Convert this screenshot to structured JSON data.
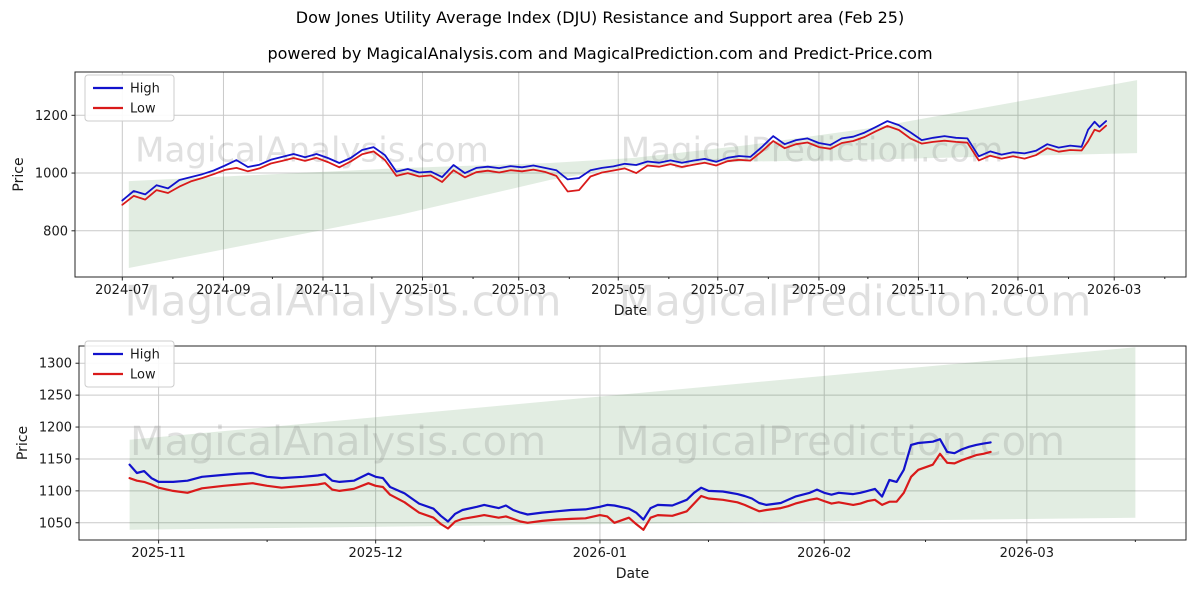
{
  "title": "Dow Jones Utility Average Index (DJU) Resistance and Support area (Feb 25)",
  "subtitle": "powered by MagicalAnalysis.com and MagicalPrediction.com and Predict-Price.com",
  "watermarks": [
    "MagicalAnalysis.com",
    "MagicalPrediction.com"
  ],
  "colors": {
    "high": "#1212cc",
    "low": "#d91a1a",
    "band": "rgba(34,119,34,0.13)",
    "grid": "#c9c9c9",
    "spine": "#262626",
    "text": "#1a1a1a",
    "watermark": "#8a8a8a"
  },
  "chart_data": [
    {
      "type": "line",
      "name": "overview",
      "xlabel": "Date",
      "ylabel": "Price",
      "grid": true,
      "legend_position": "upper left",
      "legend": [
        "High",
        "Low"
      ],
      "xlim": [
        "2024-06-02",
        "2026-04-14"
      ],
      "ylim": [
        640,
        1350
      ],
      "yticks": [
        800,
        1000,
        1200
      ],
      "xticks": [
        {
          "label": "2024-07",
          "date": "2024-07-01"
        },
        {
          "label": "2024-09",
          "date": "2024-09-01"
        },
        {
          "label": "2024-11",
          "date": "2024-11-01"
        },
        {
          "label": "2025-01",
          "date": "2025-01-01"
        },
        {
          "label": "2025-03",
          "date": "2025-03-01"
        },
        {
          "label": "2025-05",
          "date": "2025-05-01"
        },
        {
          "label": "2025-07",
          "date": "2025-07-01"
        },
        {
          "label": "2025-09",
          "date": "2025-09-01"
        },
        {
          "label": "2025-11",
          "date": "2025-11-01"
        },
        {
          "label": "2026-01",
          "date": "2026-01-01"
        },
        {
          "label": "2026-03",
          "date": "2026-03-01"
        }
      ],
      "minor_xticks": [
        "2024-08-01",
        "2024-10-01",
        "2024-12-01",
        "2025-02-01",
        "2025-04-01",
        "2025-06-01",
        "2025-08-01",
        "2025-10-01",
        "2025-12-01",
        "2026-02-01",
        "2026-04-01"
      ],
      "dates": [
        "2024-07-01",
        "2024-07-08",
        "2024-07-15",
        "2024-07-22",
        "2024-07-29",
        "2024-08-05",
        "2024-08-12",
        "2024-08-19",
        "2024-08-26",
        "2024-09-02",
        "2024-09-09",
        "2024-09-16",
        "2024-09-23",
        "2024-09-30",
        "2024-10-07",
        "2024-10-14",
        "2024-10-21",
        "2024-10-28",
        "2024-11-04",
        "2024-11-11",
        "2024-11-18",
        "2024-11-25",
        "2024-12-02",
        "2024-12-09",
        "2024-12-16",
        "2024-12-23",
        "2024-12-30",
        "2025-01-06",
        "2025-01-13",
        "2025-01-20",
        "2025-01-27",
        "2025-02-03",
        "2025-02-10",
        "2025-02-17",
        "2025-02-24",
        "2025-03-03",
        "2025-03-10",
        "2025-03-17",
        "2025-03-24",
        "2025-03-31",
        "2025-04-07",
        "2025-04-14",
        "2025-04-21",
        "2025-04-28",
        "2025-05-05",
        "2025-05-12",
        "2025-05-19",
        "2025-05-26",
        "2025-06-02",
        "2025-06-09",
        "2025-06-16",
        "2025-06-23",
        "2025-06-30",
        "2025-07-07",
        "2025-07-14",
        "2025-07-21",
        "2025-07-28",
        "2025-08-04",
        "2025-08-11",
        "2025-08-18",
        "2025-08-25",
        "2025-09-01",
        "2025-09-08",
        "2025-09-15",
        "2025-09-22",
        "2025-09-29",
        "2025-10-06",
        "2025-10-13",
        "2025-10-20",
        "2025-10-27",
        "2025-11-03",
        "2025-11-10",
        "2025-11-17",
        "2025-11-24",
        "2025-12-01",
        "2025-12-08",
        "2025-12-15",
        "2025-12-22",
        "2025-12-29",
        "2026-01-05",
        "2026-01-12",
        "2026-01-19",
        "2026-01-26",
        "2026-02-02",
        "2026-02-09",
        "2026-02-13",
        "2026-02-17",
        "2026-02-20",
        "2026-02-24"
      ],
      "series": [
        {
          "name": "High",
          "values": [
            905,
            938,
            926,
            958,
            947,
            976,
            986,
            996,
            1009,
            1026,
            1045,
            1021,
            1029,
            1046,
            1056,
            1066,
            1055,
            1066,
            1052,
            1035,
            1052,
            1080,
            1090,
            1062,
            1005,
            1014,
            1002,
            1005,
            986,
            1028,
            1000,
            1018,
            1022,
            1017,
            1024,
            1020,
            1026,
            1018,
            1010,
            978,
            983,
            1010,
            1018,
            1023,
            1032,
            1028,
            1040,
            1036,
            1044,
            1036,
            1043,
            1049,
            1039,
            1053,
            1059,
            1056,
            1090,
            1128,
            1100,
            1114,
            1120,
            1104,
            1097,
            1120,
            1126,
            1140,
            1160,
            1180,
            1166,
            1141,
            1114,
            1122,
            1128,
            1122,
            1120,
            1058,
            1075,
            1064,
            1072,
            1068,
            1077,
            1100,
            1088,
            1095,
            1091,
            1150,
            1178,
            1160,
            1180
          ]
        },
        {
          "name": "Low",
          "values": [
            890,
            921,
            908,
            941,
            931,
            953,
            971,
            983,
            996,
            1011,
            1018,
            1006,
            1016,
            1033,
            1042,
            1052,
            1042,
            1053,
            1038,
            1020,
            1040,
            1065,
            1075,
            1045,
            990,
            1000,
            988,
            992,
            969,
            1010,
            985,
            1003,
            1008,
            1002,
            1010,
            1006,
            1012,
            1004,
            990,
            936,
            941,
            988,
            1002,
            1009,
            1016,
            1000,
            1026,
            1022,
            1031,
            1021,
            1029,
            1036,
            1026,
            1041,
            1046,
            1043,
            1075,
            1111,
            1086,
            1100,
            1106,
            1090,
            1084,
            1104,
            1111,
            1125,
            1145,
            1163,
            1149,
            1120,
            1102,
            1108,
            1112,
            1108,
            1105,
            1044,
            1060,
            1050,
            1058,
            1050,
            1062,
            1086,
            1074,
            1080,
            1078,
            1110,
            1150,
            1144,
            1164
          ]
        }
      ],
      "band_polygon": [
        [
          "2024-07-05",
          972
        ],
        [
          "2024-12-18",
          1017
        ],
        [
          "2025-03-20",
          1035
        ],
        [
          "2025-05-10",
          1052
        ],
        [
          "2025-07-20",
          1097
        ],
        [
          "2025-10-03",
          1156
        ],
        [
          "2026-03-15",
          1322
        ],
        [
          "2026-03-15",
          1069
        ],
        [
          "2025-09-20",
          1045
        ],
        [
          "2025-07-20",
          1040
        ],
        [
          "2025-05-10",
          1024
        ],
        [
          "2025-03-20",
          976
        ],
        [
          "2024-12-18",
          855
        ],
        [
          "2024-07-05",
          671
        ]
      ]
    },
    {
      "type": "line",
      "name": "detail",
      "xlabel": "Date",
      "ylabel": "Price",
      "grid": true,
      "legend_position": "upper left",
      "legend": [
        "High",
        "Low"
      ],
      "xlim": [
        "2025-10-21",
        "2026-03-23"
      ],
      "ylim": [
        1023,
        1327
      ],
      "yticks": [
        1050,
        1100,
        1150,
        1200,
        1250,
        1300
      ],
      "xticks": [
        {
          "label": "2025-11",
          "date": "2025-11-01"
        },
        {
          "label": "2025-12",
          "date": "2025-12-01"
        },
        {
          "label": "2026-01",
          "date": "2026-01-01"
        },
        {
          "label": "2026-02",
          "date": "2026-02-01"
        },
        {
          "label": "2026-03",
          "date": "2026-03-01"
        }
      ],
      "minor_xticks": [
        "2025-11-16",
        "2025-12-16",
        "2026-01-16",
        "2026-02-15",
        "2026-03-16"
      ],
      "dates": [
        "2025-10-28",
        "2025-10-29",
        "2025-10-30",
        "2025-10-31",
        "2025-11-01",
        "2025-11-03",
        "2025-11-05",
        "2025-11-07",
        "2025-11-10",
        "2025-11-12",
        "2025-11-14",
        "2025-11-16",
        "2025-11-18",
        "2025-11-21",
        "2025-11-23",
        "2025-11-24",
        "2025-11-25",
        "2025-11-26",
        "2025-11-28",
        "2025-11-30",
        "2025-12-01",
        "2025-12-02",
        "2025-12-03",
        "2025-12-05",
        "2025-12-06",
        "2025-12-07",
        "2025-12-09",
        "2025-12-10",
        "2025-12-11",
        "2025-12-12",
        "2025-12-13",
        "2025-12-15",
        "2025-12-16",
        "2025-12-18",
        "2025-12-19",
        "2025-12-20",
        "2025-12-21",
        "2025-12-22",
        "2025-12-24",
        "2025-12-26",
        "2025-12-28",
        "2025-12-30",
        "2026-01-01",
        "2026-01-02",
        "2026-01-03",
        "2026-01-05",
        "2026-01-06",
        "2026-01-07",
        "2026-01-08",
        "2026-01-09",
        "2026-01-11",
        "2026-01-13",
        "2026-01-14",
        "2026-01-15",
        "2026-01-16",
        "2026-01-18",
        "2026-01-20",
        "2026-01-21",
        "2026-01-22",
        "2026-01-23",
        "2026-01-24",
        "2026-01-26",
        "2026-01-27",
        "2026-01-28",
        "2026-01-30",
        "2026-01-31",
        "2026-02-01",
        "2026-02-02",
        "2026-02-03",
        "2026-02-05",
        "2026-02-06",
        "2026-02-07",
        "2026-02-08",
        "2026-02-09",
        "2026-02-10",
        "2026-02-11",
        "2026-02-12",
        "2026-02-13",
        "2026-02-14",
        "2026-02-16",
        "2026-02-17",
        "2026-02-18",
        "2026-02-19",
        "2026-02-20",
        "2026-02-21",
        "2026-02-22",
        "2026-02-23",
        "2026-02-24"
      ],
      "series": [
        {
          "name": "High",
          "values": [
            1141,
            1128,
            1131,
            1120,
            1114,
            1114,
            1116,
            1122,
            1125,
            1127,
            1128,
            1122,
            1120,
            1122,
            1124,
            1126,
            1116,
            1114,
            1116,
            1127,
            1122,
            1120,
            1106,
            1096,
            1088,
            1080,
            1072,
            1061,
            1052,
            1064,
            1070,
            1075,
            1078,
            1073,
            1077,
            1070,
            1066,
            1063,
            1066,
            1068,
            1070,
            1071,
            1075,
            1078,
            1077,
            1072,
            1066,
            1055,
            1073,
            1078,
            1077,
            1086,
            1097,
            1105,
            1100,
            1099,
            1095,
            1092,
            1088,
            1081,
            1078,
            1081,
            1086,
            1091,
            1097,
            1102,
            1097,
            1094,
            1097,
            1095,
            1097,
            1100,
            1103,
            1091,
            1117,
            1114,
            1133,
            1172,
            1175,
            1177,
            1181,
            1161,
            1159,
            1165,
            1169,
            1172,
            1174,
            1176
          ]
        },
        {
          "name": "Low",
          "values": [
            1120,
            1116,
            1114,
            1110,
            1105,
            1100,
            1097,
            1104,
            1108,
            1110,
            1112,
            1108,
            1105,
            1108,
            1110,
            1112,
            1102,
            1100,
            1103,
            1112,
            1108,
            1106,
            1094,
            1082,
            1074,
            1066,
            1058,
            1048,
            1041,
            1052,
            1056,
            1060,
            1062,
            1058,
            1060,
            1056,
            1052,
            1050,
            1053,
            1055,
            1056,
            1057,
            1062,
            1060,
            1050,
            1058,
            1048,
            1039,
            1058,
            1062,
            1061,
            1068,
            1080,
            1092,
            1088,
            1086,
            1082,
            1078,
            1073,
            1068,
            1070,
            1073,
            1076,
            1080,
            1086,
            1088,
            1084,
            1080,
            1082,
            1078,
            1080,
            1084,
            1086,
            1078,
            1083,
            1083,
            1097,
            1122,
            1133,
            1141,
            1158,
            1144,
            1143,
            1148,
            1152,
            1156,
            1158,
            1161
          ]
        }
      ],
      "band_polygon": [
        [
          "2025-10-28",
          1180
        ],
        [
          "2026-03-16",
          1325
        ],
        [
          "2026-03-16",
          1058
        ],
        [
          "2025-10-28",
          1039
        ]
      ]
    }
  ]
}
